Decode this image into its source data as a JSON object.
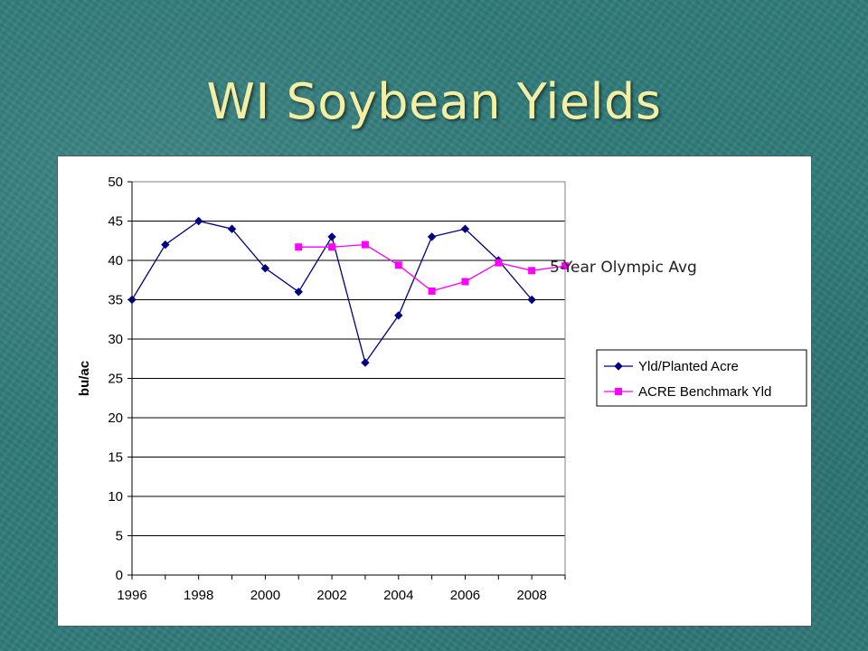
{
  "slide": {
    "title": "WI Soybean Yields",
    "note": "5-Year Olympic Avg",
    "title_color": "#f3f0a6",
    "background_color": "#2f7b7a"
  },
  "chart_data": {
    "type": "line",
    "title": "",
    "xlabel": "",
    "ylabel": "bu/ac",
    "xlim": [
      1996,
      2009
    ],
    "ylim": [
      0,
      50
    ],
    "xticks": [
      1996,
      1998,
      2000,
      2002,
      2004,
      2006,
      2008
    ],
    "yticks": [
      0,
      5,
      10,
      15,
      20,
      25,
      30,
      35,
      40,
      45,
      50
    ],
    "grid": "horizontal",
    "legend_position": "right",
    "series": [
      {
        "name": "Yld/Planted Acre",
        "color": "#000080",
        "marker": "diamond",
        "x": [
          1996,
          1997,
          1998,
          1999,
          2000,
          2001,
          2002,
          2003,
          2004,
          2005,
          2006,
          2007,
          2008
        ],
        "y": [
          35,
          42,
          45,
          44,
          39,
          36,
          43,
          27,
          33,
          43,
          44,
          40,
          35
        ]
      },
      {
        "name": "ACRE Benchmark Yld",
        "color": "#ff00ff",
        "marker": "square",
        "x": [
          2001,
          2002,
          2003,
          2004,
          2005,
          2006,
          2007,
          2008,
          2009
        ],
        "y": [
          41.7,
          41.7,
          42,
          39.4,
          36.1,
          37.3,
          39.7,
          38.7,
          39.3
        ]
      }
    ]
  }
}
